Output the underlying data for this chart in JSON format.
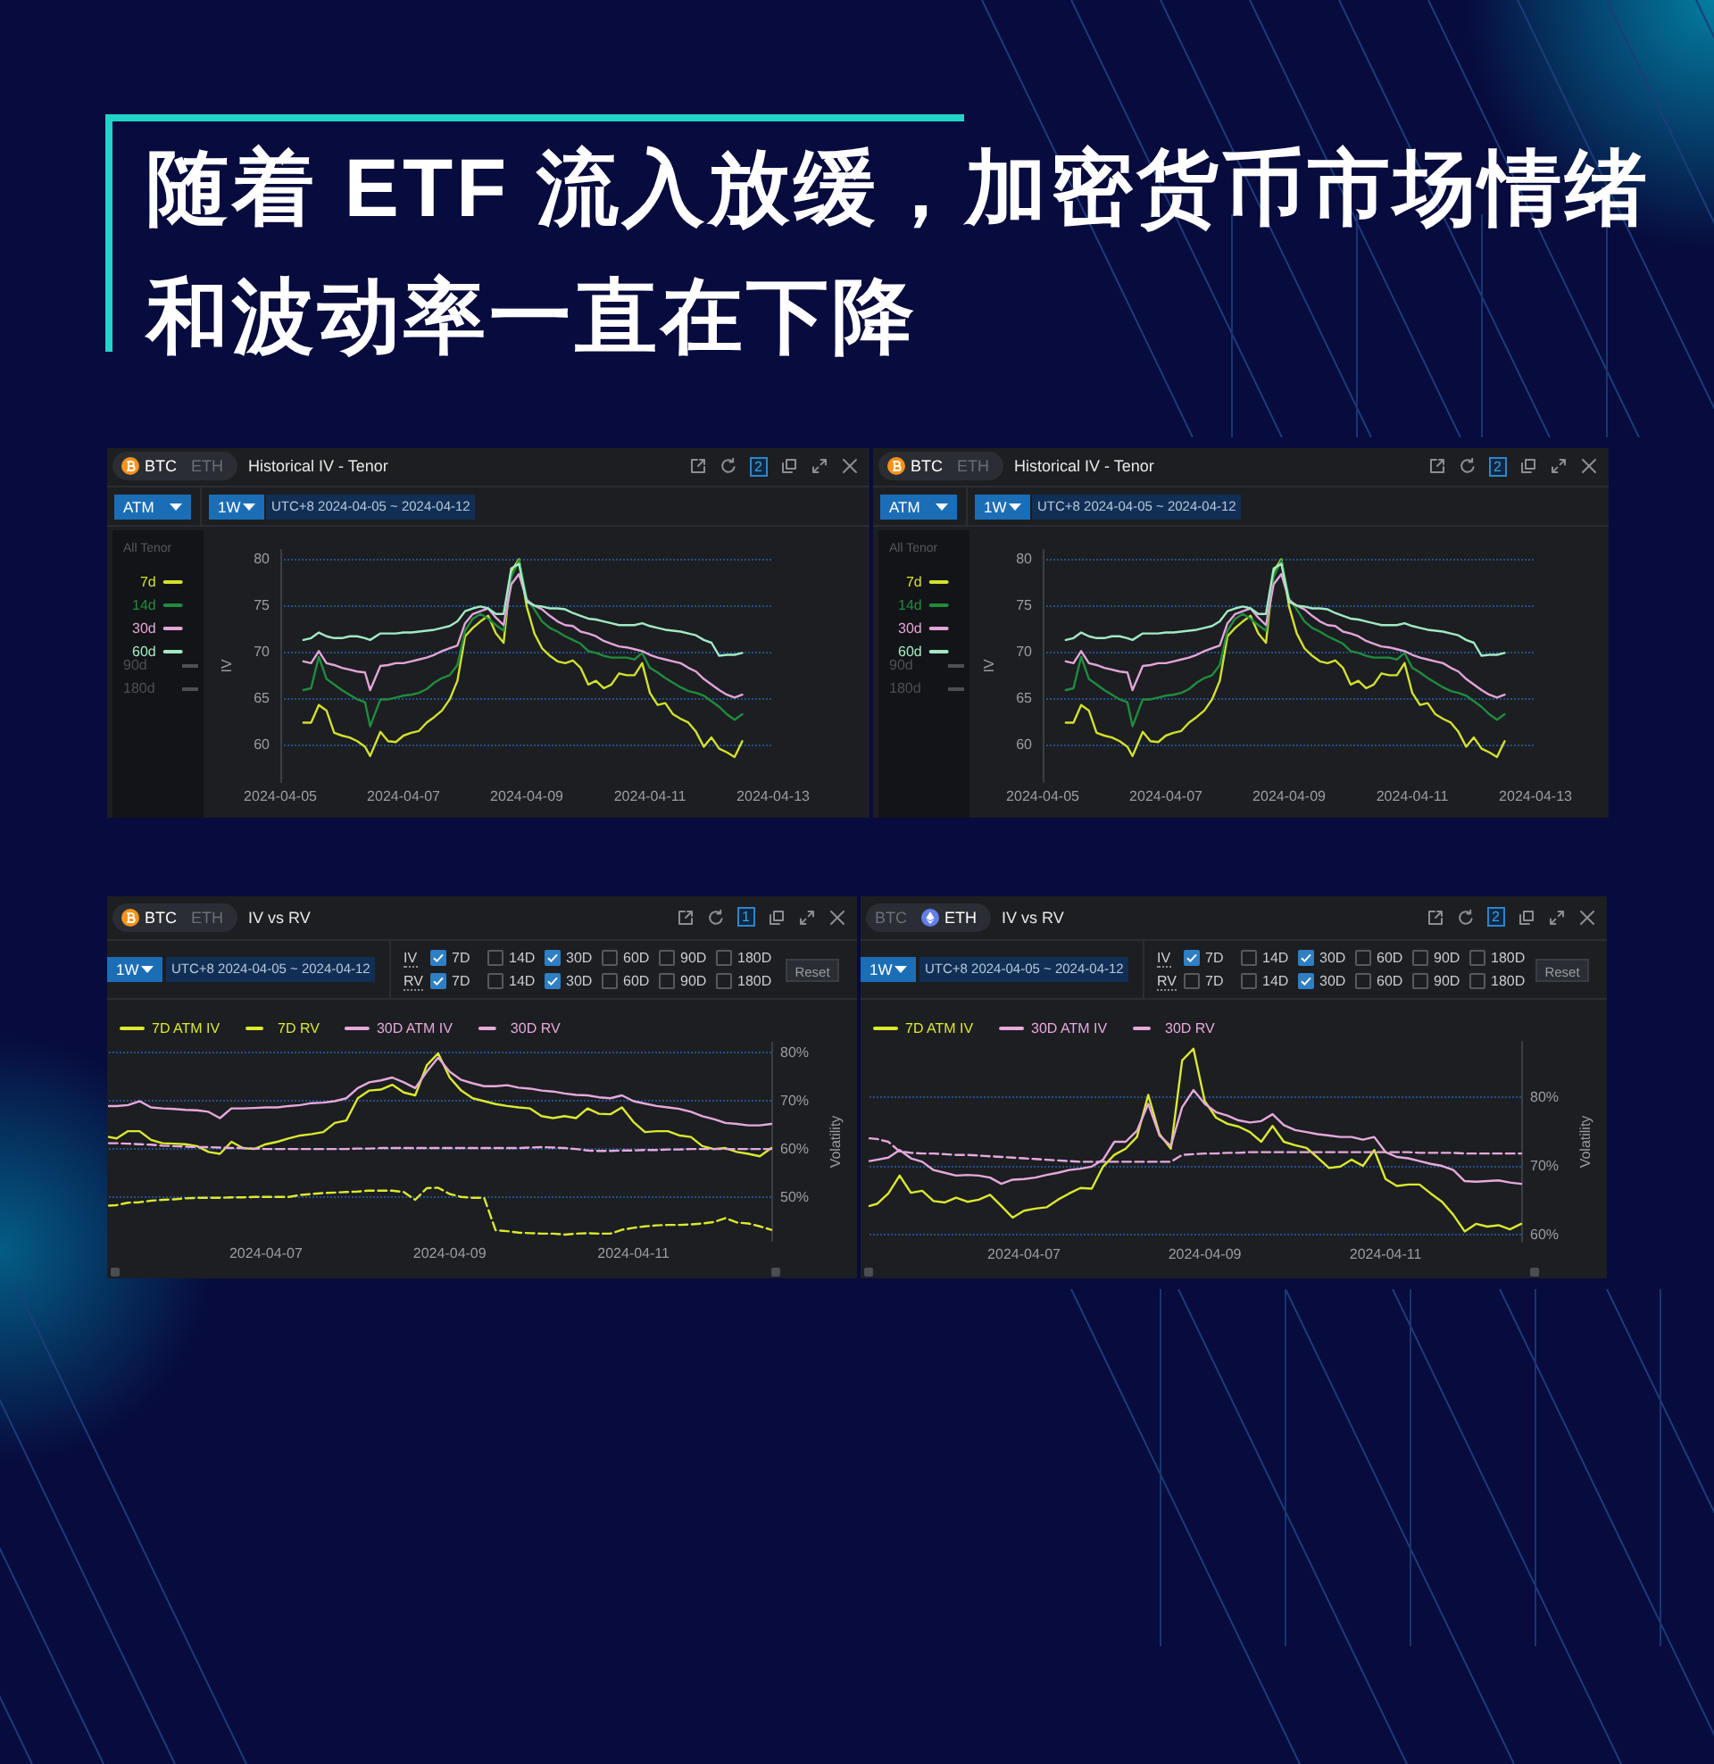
{
  "chart_data": [
    {
      "type": "other",
      "title": "随着 ETF 流入放缓，加密货币市场情绪和波动率一直在下降"
    },
    {
      "type": "line",
      "title": "Historical IV - Tenor",
      "subtitle": "UTC+8 2024-04-05 ~ 2024-04-12",
      "ylabel": "IV",
      "legend_title": "All Tenor",
      "annotations": [
        "BTC",
        "ETH",
        "2",
        "ATM",
        "1W",
        "90d",
        "180d"
      ],
      "legend": "left",
      "grid": "y",
      "xlim": [
        "2024-04-05",
        "2024-04-13"
      ],
      "xticks": [
        "2024-04-05",
        "2024-04-07",
        "2024-04-09",
        "2024-04-11",
        "2024-04-13"
      ],
      "ylim": [
        56,
        81
      ],
      "yticks": [
        60,
        65,
        70,
        75,
        80
      ],
      "x": [
        "2024-04-05T09:00",
        "2024-04-05T12:00",
        "2024-04-05T15:00",
        "2024-04-05T18:00",
        "2024-04-05T21:00",
        "2024-04-06T00:00",
        "2024-04-06T03:00",
        "2024-04-06T06:00",
        "2024-04-06T09:00",
        "2024-04-06T11:00",
        "2024-04-06T15:00",
        "2024-04-06T18:00",
        "2024-04-06T21:00",
        "2024-04-07T00:00",
        "2024-04-07T03:00",
        "2024-04-07T06:00",
        "2024-04-07T09:00",
        "2024-04-07T12:00",
        "2024-04-07T15:00",
        "2024-04-07T18:00",
        "2024-04-07T21:00",
        "2024-04-08T00:00",
        "2024-04-08T03:00",
        "2024-04-08T06:00",
        "2024-04-08T09:00",
        "2024-04-08T12:00",
        "2024-04-08T15:00",
        "2024-04-08T18:00",
        "2024-04-08T21:00",
        "2024-04-09T00:00",
        "2024-04-09T03:00",
        "2024-04-09T06:00",
        "2024-04-09T09:00",
        "2024-04-09T12:00",
        "2024-04-09T15:00",
        "2024-04-09T18:00",
        "2024-04-09T21:00",
        "2024-04-10T00:00",
        "2024-04-10T03:00",
        "2024-04-10T06:00",
        "2024-04-10T09:00",
        "2024-04-10T12:00",
        "2024-04-10T15:00",
        "2024-04-10T18:00",
        "2024-04-10T21:00",
        "2024-04-11T00:00",
        "2024-04-11T03:00",
        "2024-04-11T06:00",
        "2024-04-11T09:00",
        "2024-04-11T12:00",
        "2024-04-11T15:00",
        "2024-04-11T18:00",
        "2024-04-11T21:00",
        "2024-04-12T00:00",
        "2024-04-12T03:00",
        "2024-04-12T06:00",
        "2024-04-12T09:00",
        "2024-04-12T12:00"
      ],
      "series": [
        {
          "name": "7d",
          "color": "#d3e12c",
          "values": [
            62.4,
            62.4,
            64.3,
            63.7,
            61.3,
            61.0,
            60.8,
            60.4,
            59.8,
            58.8,
            61.4,
            60.4,
            60.3,
            61.0,
            61.3,
            61.5,
            62.4,
            63.0,
            63.7,
            64.9,
            66.9,
            71.7,
            72.6,
            73.3,
            73.9,
            72.0,
            71.0,
            78.7,
            80.0,
            74.9,
            72.0,
            70.4,
            69.6,
            69.0,
            68.8,
            69.1,
            68.3,
            66.5,
            66.9,
            66.1,
            66.5,
            67.7,
            67.5,
            67.5,
            68.8,
            65.6,
            64.3,
            64.5,
            63.3,
            62.8,
            62.4,
            61.4,
            59.8,
            60.8,
            59.6,
            59.2,
            58.7,
            60.4
          ]
        },
        {
          "name": "14d",
          "color": "#208c3d",
          "values": [
            65.9,
            66.1,
            69.5,
            67.1,
            66.5,
            65.9,
            65.4,
            64.9,
            64.6,
            62.0,
            64.9,
            64.9,
            65.1,
            65.3,
            65.4,
            65.6,
            66.0,
            66.7,
            67.2,
            67.5,
            68.6,
            72.3,
            73.6,
            74.1,
            73.6,
            72.9,
            72.3,
            78.1,
            79.9,
            75.8,
            74.6,
            73.3,
            72.6,
            72.2,
            71.7,
            71.3,
            70.9,
            70.1,
            69.9,
            69.6,
            69.4,
            69.4,
            69.4,
            69.2,
            69.9,
            68.3,
            67.8,
            67.2,
            66.7,
            66.2,
            65.8,
            65.6,
            65.3,
            64.7,
            64.1,
            63.3,
            62.7,
            63.3
          ]
        },
        {
          "name": "30d",
          "color": "#e3a5d9",
          "values": [
            69.0,
            68.8,
            70.1,
            68.8,
            68.6,
            68.3,
            68.1,
            67.9,
            67.8,
            65.9,
            68.5,
            68.6,
            68.8,
            68.8,
            69.0,
            69.2,
            69.4,
            69.7,
            70.1,
            70.4,
            70.7,
            73.1,
            74.1,
            74.4,
            74.7,
            73.7,
            72.9,
            77.3,
            78.4,
            75.6,
            75.0,
            74.6,
            73.9,
            73.3,
            72.9,
            72.8,
            72.2,
            72.0,
            71.7,
            71.2,
            70.9,
            70.6,
            70.5,
            70.3,
            70.1,
            69.7,
            69.4,
            69.2,
            69.0,
            68.8,
            68.3,
            67.9,
            67.1,
            66.5,
            65.9,
            65.4,
            65.1,
            65.4
          ]
        },
        {
          "name": "60d",
          "color": "#a2eac4",
          "values": [
            71.3,
            71.5,
            72.1,
            71.7,
            71.5,
            71.5,
            71.7,
            71.7,
            71.5,
            71.3,
            72.0,
            72.0,
            72.0,
            72.1,
            72.1,
            72.2,
            72.3,
            72.4,
            72.6,
            72.8,
            73.3,
            74.4,
            74.7,
            74.9,
            74.7,
            74.1,
            74.1,
            79.0,
            79.5,
            75.4,
            75.0,
            74.9,
            74.7,
            74.7,
            74.6,
            74.2,
            73.9,
            73.6,
            73.5,
            73.3,
            73.1,
            72.9,
            72.9,
            72.9,
            73.1,
            72.8,
            72.6,
            72.4,
            72.3,
            72.2,
            72.0,
            71.8,
            71.3,
            71.0,
            69.6,
            69.7,
            69.7,
            69.9
          ]
        }
      ]
    },
    {
      "type": "line",
      "title": "Historical IV - Tenor",
      "subtitle": "UTC+8 2024-04-05 ~ 2024-04-12",
      "ylabel": "IV",
      "legend_title": "All Tenor",
      "annotations": [
        "BTC",
        "ETH",
        "2",
        "ATM",
        "1W",
        "90d",
        "180d"
      ],
      "legend": "left",
      "grid": "y",
      "xlim": [
        "2024-04-05",
        "2024-04-13"
      ],
      "xticks": [
        "2024-04-05",
        "2024-04-07",
        "2024-04-09",
        "2024-04-11",
        "2024-04-13"
      ],
      "ylim": [
        56,
        81
      ],
      "yticks": [
        60,
        65,
        70,
        75,
        80
      ],
      "x": [
        "2024-04-05T09:00",
        "2024-04-05T12:00",
        "2024-04-05T15:00",
        "2024-04-05T18:00",
        "2024-04-05T21:00",
        "2024-04-06T00:00",
        "2024-04-06T03:00",
        "2024-04-06T06:00",
        "2024-04-06T09:00",
        "2024-04-06T11:00",
        "2024-04-06T15:00",
        "2024-04-06T18:00",
        "2024-04-06T21:00",
        "2024-04-07T00:00",
        "2024-04-07T03:00",
        "2024-04-07T06:00",
        "2024-04-07T09:00",
        "2024-04-07T12:00",
        "2024-04-07T15:00",
        "2024-04-07T18:00",
        "2024-04-07T21:00",
        "2024-04-08T00:00",
        "2024-04-08T03:00",
        "2024-04-08T06:00",
        "2024-04-08T09:00",
        "2024-04-08T12:00",
        "2024-04-08T15:00",
        "2024-04-08T18:00",
        "2024-04-08T21:00",
        "2024-04-09T00:00",
        "2024-04-09T03:00",
        "2024-04-09T06:00",
        "2024-04-09T09:00",
        "2024-04-09T12:00",
        "2024-04-09T15:00",
        "2024-04-09T18:00",
        "2024-04-09T21:00",
        "2024-04-10T00:00",
        "2024-04-10T03:00",
        "2024-04-10T06:00",
        "2024-04-10T09:00",
        "2024-04-10T12:00",
        "2024-04-10T15:00",
        "2024-04-10T18:00",
        "2024-04-10T21:00",
        "2024-04-11T00:00",
        "2024-04-11T03:00",
        "2024-04-11T06:00",
        "2024-04-11T09:00",
        "2024-04-11T12:00",
        "2024-04-11T15:00",
        "2024-04-11T18:00",
        "2024-04-11T21:00",
        "2024-04-12T00:00",
        "2024-04-12T03:00",
        "2024-04-12T06:00",
        "2024-04-12T09:00",
        "2024-04-12T12:00"
      ],
      "series": [
        {
          "name": "7d",
          "color": "#d3e12c",
          "values": [
            62.4,
            62.4,
            64.3,
            63.7,
            61.3,
            61.0,
            60.8,
            60.4,
            59.8,
            58.8,
            61.4,
            60.4,
            60.3,
            61.0,
            61.3,
            61.5,
            62.4,
            63.0,
            63.7,
            64.9,
            66.9,
            71.7,
            72.6,
            73.3,
            73.9,
            72.0,
            71.0,
            78.7,
            80.0,
            74.9,
            72.0,
            70.4,
            69.6,
            69.0,
            68.8,
            69.1,
            68.3,
            66.5,
            66.9,
            66.1,
            66.5,
            67.7,
            67.5,
            67.5,
            68.8,
            65.6,
            64.3,
            64.5,
            63.3,
            62.8,
            62.4,
            61.4,
            59.8,
            60.8,
            59.6,
            59.2,
            58.7,
            60.4
          ]
        },
        {
          "name": "14d",
          "color": "#208c3d",
          "values": [
            65.9,
            66.1,
            69.5,
            67.1,
            66.5,
            65.9,
            65.4,
            64.9,
            64.6,
            62.0,
            64.9,
            64.9,
            65.1,
            65.3,
            65.4,
            65.6,
            66.0,
            66.7,
            67.2,
            67.5,
            68.6,
            72.3,
            73.6,
            74.1,
            73.6,
            72.9,
            72.3,
            78.1,
            79.9,
            75.8,
            74.6,
            73.3,
            72.6,
            72.2,
            71.7,
            71.3,
            70.9,
            70.1,
            69.9,
            69.6,
            69.4,
            69.4,
            69.4,
            69.2,
            69.9,
            68.3,
            67.8,
            67.2,
            66.7,
            66.2,
            65.8,
            65.6,
            65.3,
            64.7,
            64.1,
            63.3,
            62.7,
            63.3
          ]
        },
        {
          "name": "30d",
          "color": "#e3a5d9",
          "values": [
            69.0,
            68.8,
            70.1,
            68.8,
            68.6,
            68.3,
            68.1,
            67.9,
            67.8,
            65.9,
            68.5,
            68.6,
            68.8,
            68.8,
            69.0,
            69.2,
            69.4,
            69.7,
            70.1,
            70.4,
            70.7,
            73.1,
            74.1,
            74.4,
            74.7,
            73.7,
            72.9,
            77.3,
            78.4,
            75.6,
            75.0,
            74.6,
            73.9,
            73.3,
            72.9,
            72.8,
            72.2,
            72.0,
            71.7,
            71.2,
            70.9,
            70.6,
            70.5,
            70.3,
            70.1,
            69.7,
            69.4,
            69.2,
            69.0,
            68.8,
            68.3,
            67.9,
            67.1,
            66.5,
            65.9,
            65.4,
            65.1,
            65.4
          ]
        },
        {
          "name": "60d",
          "color": "#a2eac4",
          "values": [
            71.3,
            71.5,
            72.1,
            71.7,
            71.5,
            71.5,
            71.7,
            71.7,
            71.5,
            71.3,
            72.0,
            72.0,
            72.0,
            72.1,
            72.1,
            72.2,
            72.3,
            72.4,
            72.6,
            72.8,
            73.3,
            74.4,
            74.7,
            74.9,
            74.7,
            74.1,
            74.1,
            79.0,
            79.5,
            75.4,
            75.0,
            74.9,
            74.7,
            74.7,
            74.6,
            74.2,
            73.9,
            73.6,
            73.5,
            73.3,
            73.1,
            72.9,
            72.9,
            72.9,
            73.1,
            72.8,
            72.6,
            72.4,
            72.3,
            72.2,
            72.0,
            71.8,
            71.3,
            71.0,
            69.6,
            69.7,
            69.7,
            69.9
          ]
        }
      ]
    },
    {
      "type": "line",
      "title": "IV vs RV",
      "subtitle": "UTC+8 2024-04-05 ~ 2024-04-12",
      "ylabel": "Volatility",
      "annotations": [
        "BTC",
        "ETH",
        "1",
        "1W",
        "IV",
        "7D",
        "14D",
        "30D",
        "60D",
        "90D",
        "180D",
        "RV",
        "7D",
        "14D",
        "30D",
        "60D",
        "90D",
        "180D",
        "Reset"
      ],
      "legend": "top left",
      "grid": "y",
      "xlim": [
        "2024-04-05T07:00",
        "2024-04-12T12:00"
      ],
      "xticks": [
        "2024-04-07",
        "2024-04-09",
        "2024-04-11"
      ],
      "ylim": [
        41,
        82
      ],
      "yticks": [
        {
          "value": 50,
          "label": "50%"
        },
        {
          "value": 60,
          "label": "60%"
        },
        {
          "value": 70,
          "label": "70%"
        },
        {
          "value": 80,
          "label": "80%"
        }
      ],
      "x": [
        "2024-04-05T07:00",
        "2024-04-05T09:00",
        "2024-04-05T12:00",
        "2024-04-05T15:00",
        "2024-04-05T18:00",
        "2024-04-05T21:00",
        "2024-04-06T00:00",
        "2024-04-06T03:00",
        "2024-04-06T06:00",
        "2024-04-06T09:00",
        "2024-04-06T12:00",
        "2024-04-06T15:00",
        "2024-04-06T18:00",
        "2024-04-06T21:00",
        "2024-04-07T00:00",
        "2024-04-07T03:00",
        "2024-04-07T06:00",
        "2024-04-07T09:00",
        "2024-04-07T12:00",
        "2024-04-07T15:00",
        "2024-04-07T18:00",
        "2024-04-07T21:00",
        "2024-04-08T00:00",
        "2024-04-08T03:00",
        "2024-04-08T06:00",
        "2024-04-08T09:00",
        "2024-04-08T12:00",
        "2024-04-08T15:00",
        "2024-04-08T18:00",
        "2024-04-08T21:00",
        "2024-04-09T00:00",
        "2024-04-09T03:00",
        "2024-04-09T06:00",
        "2024-04-09T09:00",
        "2024-04-09T12:00",
        "2024-04-09T15:00",
        "2024-04-09T18:00",
        "2024-04-09T21:00",
        "2024-04-10T00:00",
        "2024-04-10T03:00",
        "2024-04-10T06:00",
        "2024-04-10T09:00",
        "2024-04-10T12:00",
        "2024-04-10T15:00",
        "2024-04-10T18:00",
        "2024-04-10T21:00",
        "2024-04-11T00:00",
        "2024-04-11T03:00",
        "2024-04-11T06:00",
        "2024-04-11T09:00",
        "2024-04-11T12:00",
        "2024-04-11T15:00",
        "2024-04-11T18:00",
        "2024-04-11T21:00",
        "2024-04-12T00:00",
        "2024-04-12T03:00",
        "2024-04-12T06:00",
        "2024-04-12T09:00",
        "2024-04-12T12:00"
      ],
      "series": [
        {
          "name": "7D ATM IV",
          "color": "#dbe92e",
          "values": [
            62.5,
            62.2,
            63.7,
            63.7,
            61.9,
            61.2,
            61.1,
            61.0,
            60.6,
            59.4,
            59.0,
            61.5,
            60.2,
            60.0,
            61.0,
            61.5,
            62.2,
            62.8,
            63.1,
            63.5,
            65.4,
            65.9,
            70.5,
            72.1,
            72.3,
            73.3,
            71.7,
            71.1,
            77.3,
            79.8,
            74.8,
            72.1,
            70.5,
            69.9,
            69.3,
            68.9,
            68.6,
            68.4,
            66.8,
            66.4,
            66.8,
            66.4,
            68.4,
            67.3,
            67.2,
            68.6,
            65.6,
            63.5,
            63.7,
            63.7,
            62.8,
            62.5,
            60.6,
            60.0,
            60.2,
            59.4,
            59.0,
            58.5,
            60.2
          ]
        },
        {
          "name": "7D RV",
          "color": "#dbe92e",
          "line_style": "dashed",
          "values": [
            48.3,
            48.4,
            48.9,
            49.0,
            49.3,
            49.5,
            49.6,
            49.8,
            49.9,
            49.9,
            49.9,
            50.0,
            50.0,
            50.1,
            50.1,
            50.1,
            50.1,
            50.5,
            50.7,
            50.9,
            51.0,
            51.1,
            51.2,
            51.4,
            51.4,
            51.4,
            51.1,
            49.5,
            51.9,
            52.0,
            50.7,
            50.1,
            49.9,
            49.9,
            43.2,
            43.0,
            42.7,
            42.6,
            42.5,
            42.5,
            42.3,
            42.5,
            42.6,
            42.5,
            42.5,
            43.3,
            43.7,
            44.0,
            44.2,
            44.3,
            44.3,
            44.4,
            44.6,
            44.9,
            45.7,
            44.8,
            44.6,
            44.0,
            43.3
          ]
        },
        {
          "name": "30D ATM IV",
          "color": "#e6a9dc",
          "values": [
            68.9,
            68.9,
            69.1,
            69.9,
            68.6,
            68.4,
            68.3,
            68.1,
            68.0,
            67.7,
            66.4,
            68.4,
            68.4,
            68.5,
            68.6,
            68.6,
            68.9,
            69.1,
            69.5,
            69.6,
            69.9,
            70.5,
            72.6,
            73.8,
            74.2,
            74.8,
            73.8,
            72.6,
            76.0,
            78.9,
            76.0,
            74.3,
            73.6,
            73.0,
            73.0,
            73.2,
            72.7,
            72.5,
            72.1,
            71.9,
            71.5,
            71.2,
            71.1,
            70.7,
            70.5,
            71.1,
            69.9,
            69.4,
            68.9,
            68.6,
            68.3,
            67.7,
            66.8,
            66.2,
            65.4,
            65.2,
            64.9,
            64.9,
            65.2
          ]
        },
        {
          "name": "30D RV",
          "color": "#e6a9dc",
          "line_style": "dashed",
          "values": [
            61.2,
            61.2,
            61.1,
            61.0,
            60.9,
            60.7,
            60.6,
            60.5,
            60.4,
            60.4,
            60.3,
            60.2,
            60.2,
            60.1,
            60.0,
            60.0,
            60.0,
            60.0,
            60.0,
            60.0,
            60.0,
            60.0,
            60.1,
            60.1,
            60.2,
            60.2,
            60.2,
            60.2,
            60.2,
            60.2,
            60.2,
            60.2,
            60.2,
            60.2,
            60.2,
            60.2,
            60.2,
            60.3,
            60.4,
            60.3,
            60.2,
            60.0,
            59.7,
            59.6,
            59.6,
            59.7,
            59.7,
            59.8,
            59.8,
            59.9,
            59.9,
            60.0,
            60.0,
            60.0,
            60.0,
            60.0,
            60.0,
            60.0,
            60.0
          ]
        }
      ]
    },
    {
      "type": "line",
      "title": "IV vs RV",
      "subtitle": "UTC+8 2024-04-05 ~ 2024-04-12",
      "ylabel": "Volatility",
      "annotations": [
        "BTC",
        "ETH",
        "2",
        "1W",
        "IV",
        "7D",
        "14D",
        "30D",
        "60D",
        "90D",
        "180D",
        "RV",
        "7D",
        "14D",
        "30D",
        "60D",
        "90D",
        "180D",
        "Reset"
      ],
      "legend": "top left",
      "grid": "y",
      "xlim": [
        "2024-04-05T07:00",
        "2024-04-12T12:00"
      ],
      "xticks": [
        "2024-04-07",
        "2024-04-09",
        "2024-04-11"
      ],
      "ylim": [
        59,
        88
      ],
      "yticks": [
        {
          "value": 60,
          "label": "60%"
        },
        {
          "value": 70,
          "label": "70%"
        },
        {
          "value": 80,
          "label": "80%"
        }
      ],
      "x": [
        "2024-04-05T07:00",
        "2024-04-05T09:00",
        "2024-04-05T12:00",
        "2024-04-05T15:00",
        "2024-04-05T18:00",
        "2024-04-05T21:00",
        "2024-04-06T00:00",
        "2024-04-06T03:00",
        "2024-04-06T06:00",
        "2024-04-06T09:00",
        "2024-04-06T12:00",
        "2024-04-06T15:00",
        "2024-04-06T18:00",
        "2024-04-06T21:00",
        "2024-04-07T00:00",
        "2024-04-07T03:00",
        "2024-04-07T06:00",
        "2024-04-07T09:00",
        "2024-04-07T12:00",
        "2024-04-07T15:00",
        "2024-04-07T18:00",
        "2024-04-07T21:00",
        "2024-04-08T00:00",
        "2024-04-08T03:00",
        "2024-04-08T06:00",
        "2024-04-08T09:00",
        "2024-04-08T12:00",
        "2024-04-08T15:00",
        "2024-04-08T18:00",
        "2024-04-08T21:00",
        "2024-04-09T00:00",
        "2024-04-09T03:00",
        "2024-04-09T06:00",
        "2024-04-09T09:00",
        "2024-04-09T12:00",
        "2024-04-09T15:00",
        "2024-04-09T18:00",
        "2024-04-09T21:00",
        "2024-04-10T00:00",
        "2024-04-10T03:00",
        "2024-04-10T06:00",
        "2024-04-10T09:00",
        "2024-04-10T12:00",
        "2024-04-10T15:00",
        "2024-04-10T18:00",
        "2024-04-10T21:00",
        "2024-04-11T00:00",
        "2024-04-11T03:00",
        "2024-04-11T06:00",
        "2024-04-11T09:00",
        "2024-04-11T12:00",
        "2024-04-11T15:00",
        "2024-04-11T18:00",
        "2024-04-11T21:00",
        "2024-04-12T00:00",
        "2024-04-12T03:00",
        "2024-04-12T06:00",
        "2024-04-12T09:00",
        "2024-04-12T12:00"
      ],
      "series": [
        {
          "name": "7D ATM IV",
          "color": "#dbe92e",
          "values": [
            64.2,
            64.5,
            66.0,
            68.6,
            66.1,
            66.4,
            64.9,
            64.7,
            65.4,
            64.8,
            65.1,
            65.8,
            64.2,
            62.5,
            63.5,
            63.8,
            64.0,
            65.1,
            66.0,
            66.8,
            66.7,
            69.9,
            71.6,
            72.5,
            74.2,
            80.3,
            74.6,
            72.5,
            85.3,
            87.0,
            79.4,
            77.0,
            76.1,
            75.7,
            74.9,
            73.5,
            75.8,
            73.5,
            73.0,
            72.6,
            71.2,
            69.7,
            69.9,
            70.9,
            70.0,
            72.3,
            68.1,
            67.1,
            67.3,
            67.3,
            66.0,
            64.8,
            62.9,
            60.5,
            61.6,
            61.2,
            61.4,
            60.8,
            61.6
          ]
        },
        {
          "name": "30D ATM IV",
          "color": "#e6a9dc",
          "values": [
            70.7,
            70.9,
            71.2,
            72.3,
            71.1,
            70.6,
            69.4,
            69.0,
            68.6,
            68.7,
            68.6,
            68.3,
            67.4,
            68.0,
            68.1,
            68.3,
            68.7,
            69.0,
            69.4,
            69.6,
            69.9,
            70.9,
            73.5,
            73.5,
            75.1,
            79.0,
            74.4,
            72.9,
            78.5,
            81.0,
            79.0,
            77.8,
            77.3,
            76.6,
            76.3,
            76.5,
            77.5,
            75.9,
            75.2,
            74.9,
            74.6,
            74.4,
            74.2,
            74.2,
            73.8,
            74.2,
            72.0,
            71.3,
            71.1,
            70.7,
            70.3,
            70.0,
            69.4,
            67.8,
            67.7,
            67.8,
            67.9,
            67.6,
            67.4
          ]
        },
        {
          "name": "30D RV",
          "color": "#e6a9dc",
          "line_style": "dashed",
          "values": [
            74.0,
            73.9,
            73.5,
            72.1,
            71.9,
            71.8,
            71.8,
            71.7,
            71.6,
            71.6,
            71.5,
            71.4,
            71.3,
            71.2,
            71.1,
            71.0,
            70.9,
            70.8,
            70.7,
            70.6,
            70.6,
            70.6,
            70.6,
            70.6,
            70.6,
            70.6,
            70.6,
            70.6,
            71.6,
            71.7,
            71.8,
            71.8,
            71.9,
            71.9,
            72.0,
            72.0,
            72.0,
            72.0,
            72.0,
            72.0,
            72.0,
            72.0,
            72.0,
            72.0,
            72.0,
            72.0,
            72.0,
            72.0,
            72.0,
            71.9,
            71.9,
            71.9,
            71.9,
            71.8,
            71.8,
            71.8,
            71.8,
            71.8,
            71.8
          ]
        }
      ]
    }
  ]
}
